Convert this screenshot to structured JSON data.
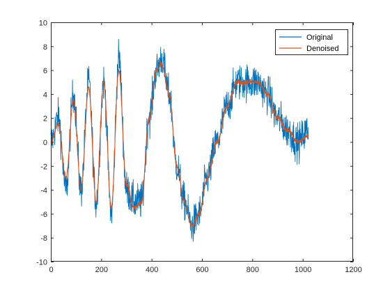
{
  "chart_data": {
    "type": "line",
    "title": "",
    "xlabel": "",
    "ylabel": "",
    "xlim": [
      0,
      1200
    ],
    "ylim": [
      -10,
      10
    ],
    "x_ticks": [
      0,
      200,
      400,
      600,
      800,
      1000,
      1200
    ],
    "y_ticks": [
      -10,
      -8,
      -6,
      -4,
      -2,
      0,
      2,
      4,
      6,
      8,
      10
    ],
    "x_tick_labels": [
      "0",
      "200",
      "400",
      "600",
      "800",
      "1000",
      "1200"
    ],
    "y_tick_labels": [
      "-10",
      "-8",
      "-6",
      "-4",
      "-2",
      "0",
      "2",
      "4",
      "6",
      "8",
      "10"
    ],
    "grid": false,
    "legend_position": "top-right",
    "n_points": 1024,
    "series": [
      {
        "name": "Original",
        "color": "#0072BD",
        "description_points": {
          "x": [
            0,
            30,
            60,
            90,
            120,
            150,
            180,
            210,
            240,
            270,
            300,
            330,
            360,
            390,
            420,
            440,
            470,
            500,
            530,
            560,
            590,
            620,
            660,
            700,
            740,
            780,
            820,
            860,
            900,
            940,
            980,
            1023
          ],
          "y": [
            0,
            2,
            -4,
            4,
            -4,
            5,
            -5,
            5,
            -6,
            7,
            -4,
            -5,
            -5,
            2,
            6,
            7,
            4,
            -2,
            -5,
            -7,
            -6,
            -3,
            0,
            3,
            5,
            5,
            5,
            4,
            2,
            1,
            0,
            1
          ]
        },
        "noise_amplitude": 1.3
      },
      {
        "name": "Denoised",
        "color": "#D95319",
        "description_points": {
          "x": [
            0,
            30,
            60,
            90,
            120,
            150,
            180,
            210,
            240,
            270,
            300,
            330,
            360,
            390,
            420,
            440,
            470,
            500,
            530,
            560,
            590,
            620,
            660,
            700,
            740,
            780,
            820,
            860,
            900,
            940,
            980,
            1023
          ],
          "y": [
            0,
            1.5,
            -3,
            3.5,
            -4,
            4.5,
            -5,
            5,
            -5.5,
            6,
            -3.5,
            -5.5,
            -5,
            2,
            6,
            6.5,
            4,
            -2,
            -5,
            -7,
            -6,
            -3,
            0,
            3,
            5,
            5,
            5,
            4,
            2,
            1,
            0,
            0.5
          ]
        },
        "noise_amplitude": 0.2
      }
    ]
  }
}
